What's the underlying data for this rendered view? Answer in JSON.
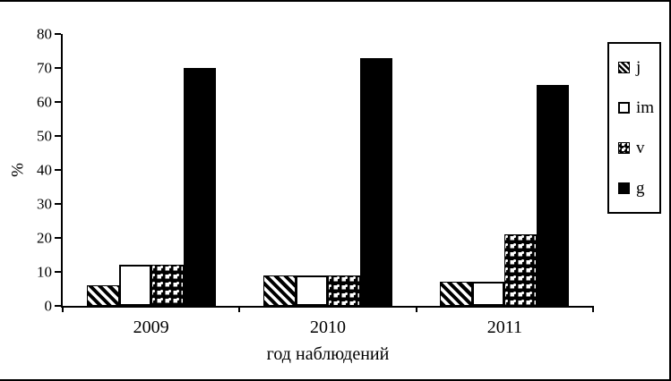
{
  "frame": {
    "background": "#ffffff",
    "border_color": "#000000"
  },
  "chart_data": {
    "type": "bar",
    "title": "",
    "categories": [
      "2009",
      "2010",
      "2011"
    ],
    "series": [
      {
        "name": "j",
        "pattern": "diagonal-hatch",
        "values": [
          6,
          9,
          7
        ]
      },
      {
        "name": "im",
        "pattern": "white-solid",
        "values": [
          12,
          9,
          7
        ]
      },
      {
        "name": "v",
        "pattern": "checker-dots",
        "values": [
          12,
          9,
          21
        ]
      },
      {
        "name": "g",
        "pattern": "solid-black",
        "values": [
          70,
          73,
          65
        ]
      }
    ],
    "xlabel": "год наблюдений",
    "ylabel": "%",
    "ylim": [
      0,
      80
    ],
    "ytick_step": 10,
    "yticks": [
      0,
      10,
      20,
      30,
      40,
      50,
      60,
      70,
      80
    ],
    "grid": false,
    "legend_position": "right",
    "bar_colors": {
      "solid": "#000000",
      "background": "#ffffff"
    }
  },
  "legend": {
    "items": [
      {
        "label": "j",
        "pattern": "diagonal-hatch"
      },
      {
        "label": "im",
        "pattern": "white-solid"
      },
      {
        "label": "v",
        "pattern": "checker-dots"
      },
      {
        "label": "g",
        "pattern": "solid-black"
      }
    ]
  }
}
